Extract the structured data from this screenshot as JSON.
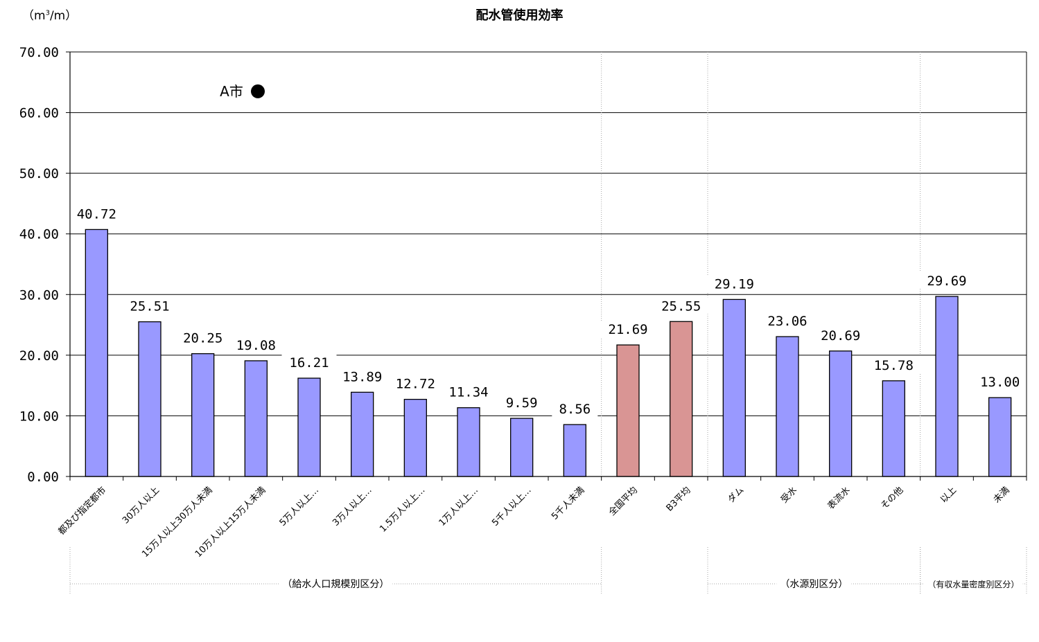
{
  "chart_data": {
    "type": "bar",
    "title": "配水管使用効率",
    "unit_label_before": "（m",
    "unit_label_sup": "3",
    "unit_label_after": "/m）",
    "ylim": [
      0,
      70
    ],
    "yticks": [
      "0.00",
      "10.00",
      "20.00",
      "30.00",
      "40.00",
      "50.00",
      "60.00",
      "70.00"
    ],
    "grid": true,
    "categories": [
      "都及び指定都市",
      "30万人以上",
      "15万人以上30万人未満",
      "10万人以上15万人未満",
      "5万人以上…",
      "3万人以上…",
      "1.5万人以上…",
      "1万人以上…",
      "5千人以上…",
      "5千人未満",
      "全国平均",
      "B3平均",
      "ダム",
      "受水",
      "表流水",
      "その他",
      "以上",
      "未満"
    ],
    "values": [
      40.72,
      25.51,
      20.25,
      19.08,
      16.21,
      13.89,
      12.72,
      11.34,
      9.59,
      8.56,
      21.69,
      25.55,
      29.19,
      23.06,
      20.69,
      15.78,
      29.69,
      13.0
    ],
    "value_labels": [
      "40.72",
      "25.51",
      "20.25",
      "19.08",
      "16.21",
      "13.89",
      "12.72",
      "11.34",
      "9.59",
      "8.56",
      "21.69",
      "25.55",
      "29.19",
      "23.06",
      "20.69",
      "15.78",
      "29.69",
      "13.00"
    ],
    "bar_kinds": [
      "group",
      "group",
      "group",
      "group",
      "group",
      "group",
      "group",
      "group",
      "group",
      "group",
      "average",
      "average",
      "group",
      "group",
      "group",
      "group",
      "group",
      "group"
    ],
    "colors": {
      "group": "#9999ff",
      "average": "#d99594",
      "grid": "#000000",
      "divider": "#a6a6a6"
    },
    "group_labels": [
      "（給水人口規模別区分）",
      "（水源別区分）",
      "（有収水量密度別区分）"
    ],
    "marker": {
      "label": "A市",
      "value": 63.5
    }
  }
}
